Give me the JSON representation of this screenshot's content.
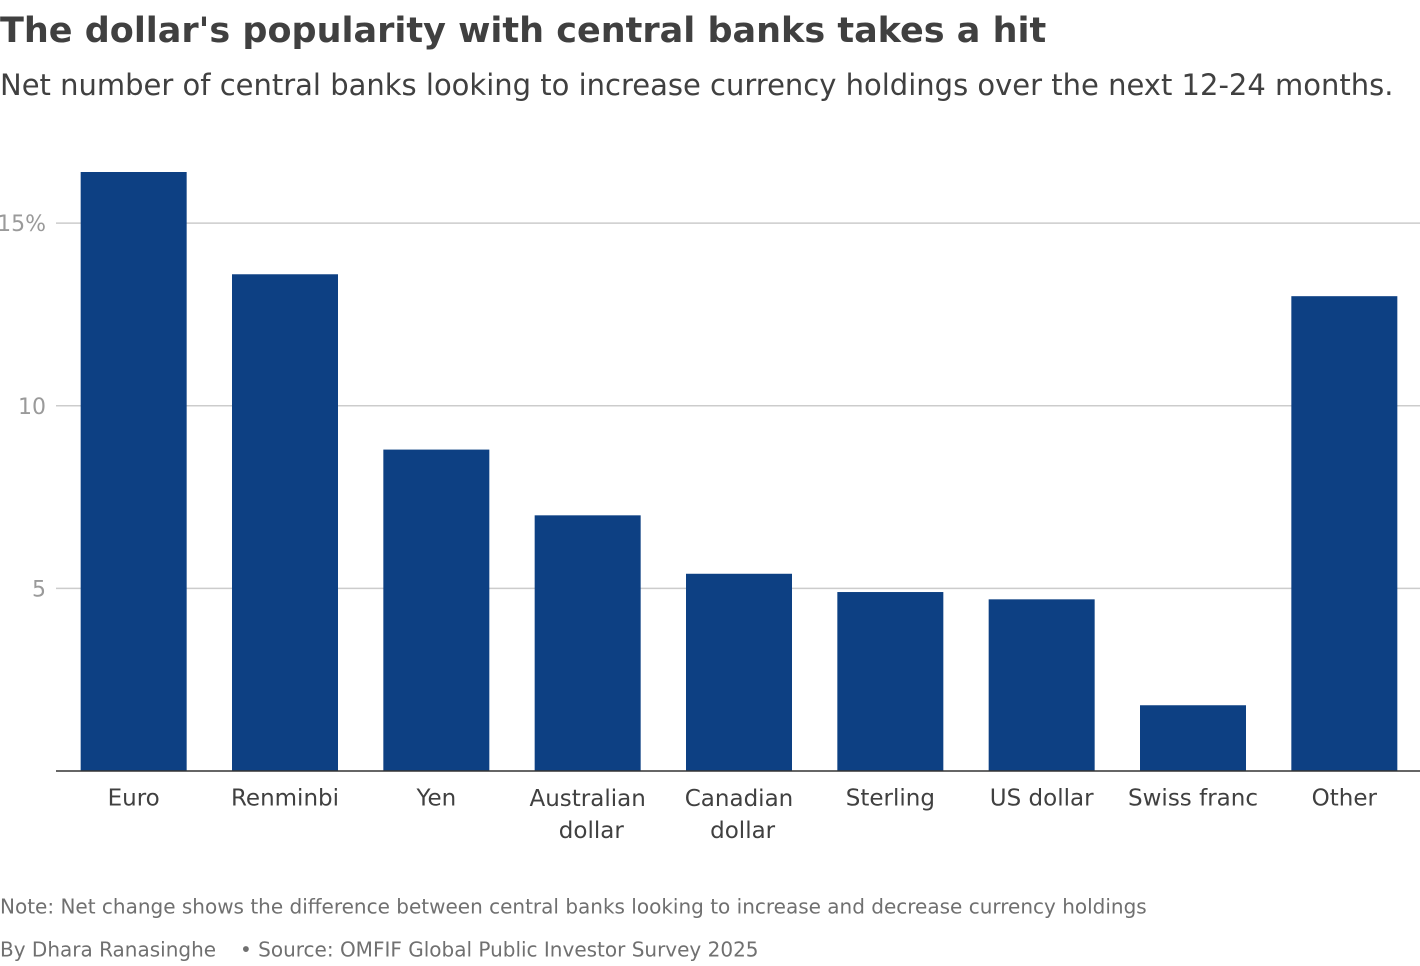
{
  "chart_data": {
    "type": "bar",
    "title": "The dollar's popularity with central banks takes a hit",
    "subtitle": "Net number of central banks looking to increase currency holdings over the next 12-24 months.",
    "categories": [
      "Euro",
      "Renminbi",
      "Yen",
      "Australian dollar",
      "Canadian dollar",
      "Sterling",
      "US dollar",
      "Swiss franc",
      "Other"
    ],
    "values": [
      16.4,
      13.6,
      8.8,
      7.0,
      5.4,
      4.9,
      4.7,
      1.8,
      13.0
    ],
    "color": "#0d4083",
    "ylim": [
      0,
      16.4
    ],
    "yticks": [
      5,
      10,
      {
        "value": 15,
        "label": "15%"
      }
    ],
    "grid": true,
    "note": "Note: Net change shows the difference between central banks looking to increase and decrease currency holdings",
    "byline": "By Dhara Ranasinghe",
    "source": "• Source: OMFIF Global Public Investor Survey 2025"
  }
}
